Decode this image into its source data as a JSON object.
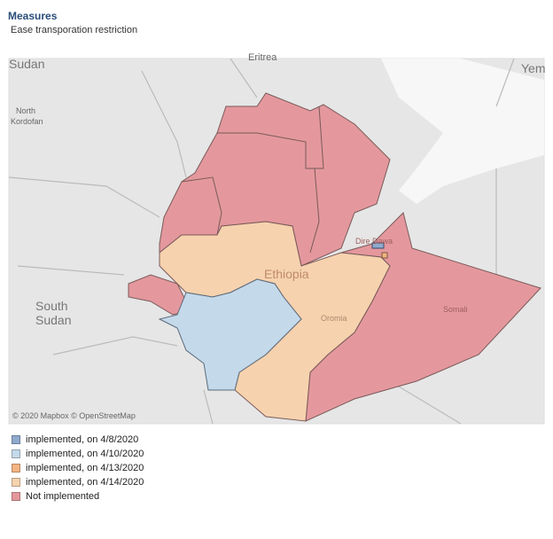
{
  "header": {
    "title": "Measures",
    "subtitle": "Ease transporation restriction"
  },
  "map": {
    "labels": [
      "Sudan",
      "Eritrea",
      "Yem",
      "North",
      "Kordofan",
      "South",
      "Sudan",
      "Ethiopia",
      "Oromia",
      "Somali",
      "Dire Dawa"
    ],
    "attribution": "© 2020 Mapbox © OpenStreetMap"
  },
  "legend": [
    {
      "label": "implemented, on  4/8/2020",
      "color": "#8eaacd"
    },
    {
      "label": "implemented, on  4/10/2020",
      "color": "#c4d9ea"
    },
    {
      "label": "implemented, on  4/13/2020",
      "color": "#f3b482"
    },
    {
      "label": "implemented, on  4/14/2020",
      "color": "#f6d2ae"
    },
    {
      "label": "Not implemented",
      "color": "#e4989d"
    }
  ]
}
